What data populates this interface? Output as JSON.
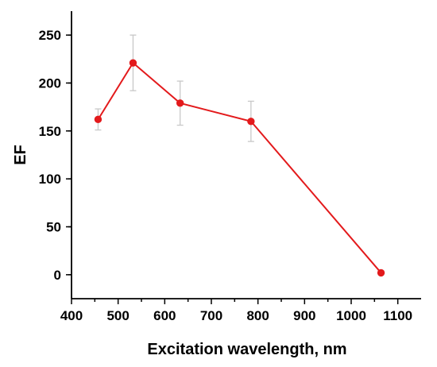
{
  "chart_data": {
    "type": "line",
    "title": "",
    "xlabel": "Excitation wavelength, nm",
    "ylabel": "EF",
    "xlim": [
      400,
      1150
    ],
    "ylim": [
      -25,
      275
    ],
    "xticks": [
      "400",
      "500",
      "600",
      "700",
      "800",
      "900",
      "1000",
      "1100"
    ],
    "yticks": [
      "0",
      "50",
      "100",
      "150",
      "200",
      "250"
    ],
    "grid": false,
    "legend": "none",
    "color": "#e31a1c",
    "series": [
      {
        "x": [
          457,
          532,
          633,
          785,
          1064
        ],
        "y": [
          162,
          221,
          179,
          160,
          2
        ],
        "error": [
          11,
          29,
          23,
          21,
          2
        ]
      }
    ]
  }
}
